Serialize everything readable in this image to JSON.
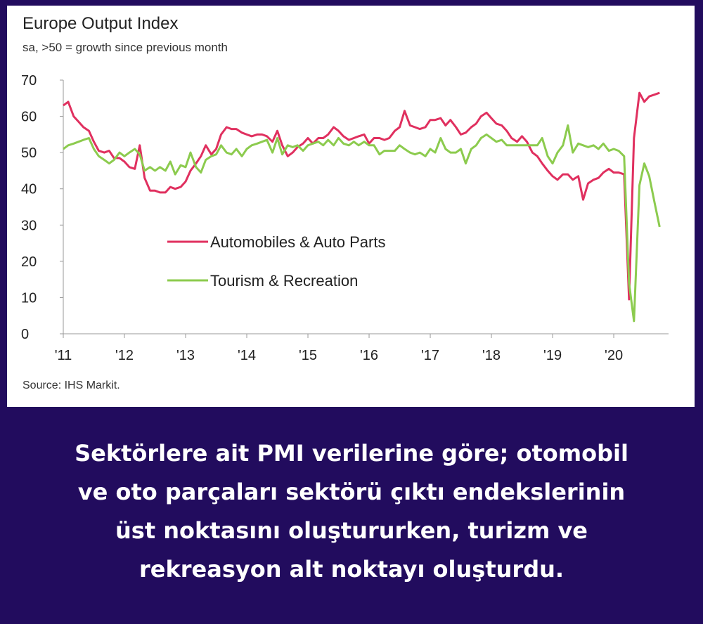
{
  "chart_data": {
    "type": "line",
    "title": "Europe Output Index",
    "subtitle": "sa, >50 = growth since previous month",
    "source": "Source: IHS Markit.",
    "xlabel": "",
    "ylabel": "",
    "ylim": [
      0,
      70
    ],
    "yticks": [
      0,
      10,
      20,
      30,
      40,
      50,
      60,
      70
    ],
    "xlim": [
      2011.0,
      2020.85
    ],
    "xticks": [
      {
        "value": 2011,
        "label": "'11"
      },
      {
        "value": 2012,
        "label": "'12"
      },
      {
        "value": 2013,
        "label": "'13"
      },
      {
        "value": 2014,
        "label": "'14"
      },
      {
        "value": 2015,
        "label": "'15"
      },
      {
        "value": 2016,
        "label": "'16"
      },
      {
        "value": 2017,
        "label": "'17"
      },
      {
        "value": 2018,
        "label": "'18"
      },
      {
        "value": 2019,
        "label": "'19"
      },
      {
        "value": 2020,
        "label": "'20"
      }
    ],
    "grid": false,
    "legend_position": "center-left",
    "series": [
      {
        "name": "Automobiles & Auto Parts",
        "color": "#e0305f",
        "points": [
          [
            2011.0,
            63
          ],
          [
            2011.08,
            64
          ],
          [
            2011.17,
            60
          ],
          [
            2011.25,
            58.5
          ],
          [
            2011.33,
            57
          ],
          [
            2011.42,
            56
          ],
          [
            2011.5,
            53
          ],
          [
            2011.58,
            50.5
          ],
          [
            2011.67,
            50
          ],
          [
            2011.75,
            50.5
          ],
          [
            2011.83,
            48.5
          ],
          [
            2011.92,
            48.5
          ],
          [
            2012.0,
            47.5
          ],
          [
            2012.08,
            46
          ],
          [
            2012.17,
            45.5
          ],
          [
            2012.25,
            52
          ],
          [
            2012.33,
            43
          ],
          [
            2012.42,
            39.5
          ],
          [
            2012.5,
            39.5
          ],
          [
            2012.58,
            39
          ],
          [
            2012.67,
            39
          ],
          [
            2012.75,
            40.5
          ],
          [
            2012.83,
            40
          ],
          [
            2012.92,
            40.5
          ],
          [
            2013.0,
            42
          ],
          [
            2013.08,
            45
          ],
          [
            2013.17,
            47
          ],
          [
            2013.25,
            49
          ],
          [
            2013.33,
            52
          ],
          [
            2013.42,
            49.5
          ],
          [
            2013.5,
            51
          ],
          [
            2013.58,
            55
          ],
          [
            2013.67,
            57
          ],
          [
            2013.75,
            56.5
          ],
          [
            2013.83,
            56.5
          ],
          [
            2013.92,
            55.5
          ],
          [
            2014.0,
            55
          ],
          [
            2014.08,
            54.5
          ],
          [
            2014.17,
            55
          ],
          [
            2014.25,
            55
          ],
          [
            2014.33,
            54.5
          ],
          [
            2014.42,
            53
          ],
          [
            2014.5,
            56
          ],
          [
            2014.58,
            52
          ],
          [
            2014.67,
            49
          ],
          [
            2014.75,
            50
          ],
          [
            2014.83,
            51.5
          ],
          [
            2014.92,
            52.5
          ],
          [
            2015.0,
            54
          ],
          [
            2015.08,
            52.5
          ],
          [
            2015.17,
            54
          ],
          [
            2015.25,
            54
          ],
          [
            2015.33,
            55
          ],
          [
            2015.42,
            57
          ],
          [
            2015.5,
            56
          ],
          [
            2015.58,
            54.5
          ],
          [
            2015.67,
            53.5
          ],
          [
            2015.75,
            54
          ],
          [
            2015.83,
            54.5
          ],
          [
            2015.92,
            55
          ],
          [
            2016.0,
            52.5
          ],
          [
            2016.08,
            54
          ],
          [
            2016.17,
            54
          ],
          [
            2016.25,
            53.5
          ],
          [
            2016.33,
            54
          ],
          [
            2016.42,
            56
          ],
          [
            2016.5,
            57
          ],
          [
            2016.58,
            61.5
          ],
          [
            2016.67,
            57.5
          ],
          [
            2016.75,
            57
          ],
          [
            2016.83,
            56.5
          ],
          [
            2016.92,
            57
          ],
          [
            2017.0,
            59
          ],
          [
            2017.08,
            59
          ],
          [
            2017.17,
            59.5
          ],
          [
            2017.25,
            57.5
          ],
          [
            2017.33,
            59
          ],
          [
            2017.42,
            57
          ],
          [
            2017.5,
            55
          ],
          [
            2017.58,
            55.5
          ],
          [
            2017.67,
            57
          ],
          [
            2017.75,
            58
          ],
          [
            2017.83,
            60
          ],
          [
            2017.92,
            61
          ],
          [
            2018.0,
            59.5
          ],
          [
            2018.08,
            58
          ],
          [
            2018.17,
            57.5
          ],
          [
            2018.25,
            56
          ],
          [
            2018.33,
            54
          ],
          [
            2018.42,
            53
          ],
          [
            2018.5,
            54.5
          ],
          [
            2018.58,
            53
          ],
          [
            2018.67,
            50
          ],
          [
            2018.75,
            49
          ],
          [
            2018.83,
            47
          ],
          [
            2018.92,
            45
          ],
          [
            2019.0,
            43.5
          ],
          [
            2019.08,
            42.5
          ],
          [
            2019.17,
            44
          ],
          [
            2019.25,
            44
          ],
          [
            2019.33,
            42.5
          ],
          [
            2019.42,
            43.5
          ],
          [
            2019.5,
            37
          ],
          [
            2019.58,
            41.5
          ],
          [
            2019.67,
            42.5
          ],
          [
            2019.75,
            43
          ],
          [
            2019.83,
            44.5
          ],
          [
            2019.92,
            45.5
          ],
          [
            2020.0,
            44.5
          ],
          [
            2020.08,
            44.5
          ],
          [
            2020.17,
            44
          ],
          [
            2020.25,
            9.5
          ],
          [
            2020.33,
            54
          ],
          [
            2020.42,
            66.5
          ],
          [
            2020.5,
            64
          ],
          [
            2020.58,
            65.5
          ],
          [
            2020.67,
            66
          ],
          [
            2020.75,
            66.5
          ]
        ]
      },
      {
        "name": "Tourism & Recreation",
        "color": "#8ccb4e",
        "points": [
          [
            2011.0,
            51
          ],
          [
            2011.08,
            52
          ],
          [
            2011.17,
            52.5
          ],
          [
            2011.25,
            53
          ],
          [
            2011.33,
            53.5
          ],
          [
            2011.42,
            54
          ],
          [
            2011.5,
            51
          ],
          [
            2011.58,
            49
          ],
          [
            2011.67,
            48
          ],
          [
            2011.75,
            47
          ],
          [
            2011.83,
            48
          ],
          [
            2011.92,
            50
          ],
          [
            2012.0,
            49
          ],
          [
            2012.08,
            50
          ],
          [
            2012.17,
            51
          ],
          [
            2012.25,
            49.5
          ],
          [
            2012.33,
            45
          ],
          [
            2012.42,
            46
          ],
          [
            2012.5,
            45
          ],
          [
            2012.58,
            46
          ],
          [
            2012.67,
            45
          ],
          [
            2012.75,
            47.5
          ],
          [
            2012.83,
            44
          ],
          [
            2012.92,
            46.5
          ],
          [
            2013.0,
            46
          ],
          [
            2013.08,
            50
          ],
          [
            2013.17,
            46
          ],
          [
            2013.25,
            44.5
          ],
          [
            2013.33,
            48
          ],
          [
            2013.42,
            49
          ],
          [
            2013.5,
            49.5
          ],
          [
            2013.58,
            52
          ],
          [
            2013.67,
            50
          ],
          [
            2013.75,
            49.5
          ],
          [
            2013.83,
            51
          ],
          [
            2013.92,
            49
          ],
          [
            2014.0,
            51
          ],
          [
            2014.08,
            52
          ],
          [
            2014.17,
            52.5
          ],
          [
            2014.25,
            53
          ],
          [
            2014.33,
            53.5
          ],
          [
            2014.42,
            50
          ],
          [
            2014.5,
            54
          ],
          [
            2014.58,
            49.5
          ],
          [
            2014.67,
            52
          ],
          [
            2014.75,
            51.5
          ],
          [
            2014.83,
            52
          ],
          [
            2014.92,
            50.5
          ],
          [
            2015.0,
            52
          ],
          [
            2015.08,
            52.5
          ],
          [
            2015.17,
            53
          ],
          [
            2015.25,
            52
          ],
          [
            2015.33,
            53.5
          ],
          [
            2015.42,
            52
          ],
          [
            2015.5,
            54
          ],
          [
            2015.58,
            52.5
          ],
          [
            2015.67,
            52
          ],
          [
            2015.75,
            53
          ],
          [
            2015.83,
            52
          ],
          [
            2015.92,
            53
          ],
          [
            2016.0,
            52
          ],
          [
            2016.08,
            52
          ],
          [
            2016.17,
            49.5
          ],
          [
            2016.25,
            50.5
          ],
          [
            2016.33,
            50.5
          ],
          [
            2016.42,
            50.5
          ],
          [
            2016.5,
            52
          ],
          [
            2016.58,
            51
          ],
          [
            2016.67,
            50
          ],
          [
            2016.75,
            49.5
          ],
          [
            2016.83,
            50
          ],
          [
            2016.92,
            49
          ],
          [
            2017.0,
            51
          ],
          [
            2017.08,
            50
          ],
          [
            2017.17,
            54
          ],
          [
            2017.25,
            51
          ],
          [
            2017.33,
            50
          ],
          [
            2017.42,
            50
          ],
          [
            2017.5,
            51
          ],
          [
            2017.58,
            47
          ],
          [
            2017.67,
            51
          ],
          [
            2017.75,
            52
          ],
          [
            2017.83,
            54
          ],
          [
            2017.92,
            55
          ],
          [
            2018.0,
            54
          ],
          [
            2018.08,
            53
          ],
          [
            2018.17,
            53.5
          ],
          [
            2018.25,
            52
          ],
          [
            2018.33,
            52
          ],
          [
            2018.42,
            52
          ],
          [
            2018.5,
            52
          ],
          [
            2018.58,
            52
          ],
          [
            2018.67,
            52
          ],
          [
            2018.75,
            52
          ],
          [
            2018.83,
            54
          ],
          [
            2018.92,
            49
          ],
          [
            2019.0,
            47
          ],
          [
            2019.08,
            50
          ],
          [
            2019.17,
            52
          ],
          [
            2019.25,
            57.5
          ],
          [
            2019.33,
            50
          ],
          [
            2019.42,
            52.5
          ],
          [
            2019.5,
            52
          ],
          [
            2019.58,
            51.5
          ],
          [
            2019.67,
            52
          ],
          [
            2019.75,
            51
          ],
          [
            2019.83,
            52.5
          ],
          [
            2019.92,
            50.5
          ],
          [
            2020.0,
            51
          ],
          [
            2020.08,
            50.5
          ],
          [
            2020.17,
            49
          ],
          [
            2020.25,
            14
          ],
          [
            2020.33,
            3.5
          ],
          [
            2020.42,
            41
          ],
          [
            2020.5,
            47
          ],
          [
            2020.58,
            43.5
          ],
          [
            2020.67,
            36
          ],
          [
            2020.75,
            29.5
          ]
        ]
      }
    ]
  },
  "caption": {
    "lines": [
      "Sektörlere ait PMI verilerine göre; otomobil",
      "ve oto parçaları sektörü çıktı endekslerinin",
      "üst noktasını oluştururken, turizm ve",
      "rekreasyon alt noktayı oluşturdu."
    ]
  }
}
